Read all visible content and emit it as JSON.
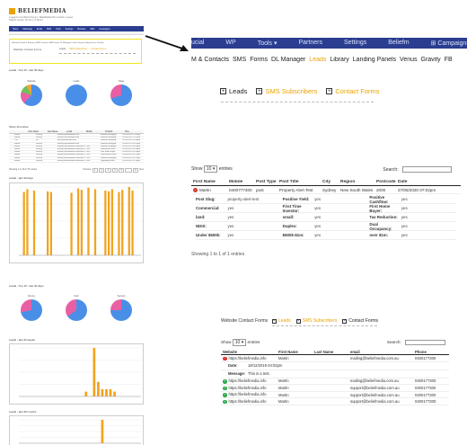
{
  "thumbnail": {
    "logo_text": "BELIEFMEDIA",
    "meta_lines": [
      "Logged in as Martin Khoury | BeliefMedia Pty Limited | Logout",
      "Search results: 32 Jul 1, 8 Sprint"
    ],
    "nav": [
      "Home",
      "Marketing",
      "Email",
      "SMS",
      "Tools",
      "Settings",
      "Modules",
      "SEO",
      "Campaigns"
    ],
    "sub_nav_text": "Website | Email & Sharing | SMS Contacts SMS Forms DL Manager Leads Library Landing Venus Gravity",
    "highlight": {
      "title": "Website Contact Forms",
      "tabs": [
        "Leads",
        "SMS Subscribers",
        "Contact Forms"
      ]
    },
    "section1_title": "Leads - Top 10 - last 30 days",
    "pies1": [
      {
        "label": "Website",
        "colors": [
          "#4a8fe7",
          "#e95fa3",
          "#6cc15d",
          "#f2a33a"
        ],
        "split": [
          62,
          18,
          12,
          8
        ]
      },
      {
        "label": "Leads",
        "colors": [
          "#4a8fe7"
        ],
        "split": [
          100
        ]
      },
      {
        "label": "Page",
        "colors": [
          "#4a8fe7",
          "#e95fa3"
        ],
        "split": [
          70,
          30
        ]
      }
    ],
    "table_title": "Show 10 entries",
    "table_headers": [
      "First Name",
      "Last Name",
      "email",
      "Mobile",
      "Product",
      "Time"
    ],
    "table_rows": [
      [
        "Martin",
        "Khoury",
        "martin@beliefmedia.com",
        "",
        "Remote mortgage",
        "2019/02/01 07:02pm"
      ],
      [
        "Martin",
        "Khoury",
        "martin@beliefmedia.com",
        "",
        "Remote mortgage",
        "2019/02/01 07:01pm"
      ],
      [
        "Tim",
        "Kit",
        "tim@beliefmedia.com",
        "",
        "Remote mortgage",
        "2019/02/01 06:58pm"
      ],
      [
        "Martin",
        "Khoury",
        "martin@beliefmedia.com",
        "",
        "Remote mortgage",
        "2019/02/01 06:51pm"
      ],
      [
        "Martin",
        "Khoury",
        "martin@beliefmedia.com",
        "0400177300",
        "Remote mortgage",
        "2019/02/01 06:44pm"
      ],
      [
        "Martin",
        "Khoury",
        "martin@beliefmedia.com",
        "0400177300",
        "Investment loans",
        "2019/02/01 06:40pm"
      ],
      [
        "Martin",
        "Khoury",
        "martin@beliefmedia.com",
        "0400177300",
        "First home buyer",
        "2019/02/01 06:39pm"
      ],
      [
        "Martin",
        "Khoury",
        "martin@beliefmedia.com",
        "0400177300",
        "Lead referral form",
        "2019/02/01 06:31pm"
      ],
      [
        "Martin",
        "Khoury",
        "martin@beliefmedia.com",
        "0400177300",
        "Remote mortgage",
        "2019/02/01 06:22pm"
      ],
      [
        "Martin",
        "Khoury",
        "martin@beliefmedia.com",
        "0400177300",
        "Upgrading loans",
        "2019/02/01 06:14pm"
      ]
    ],
    "pagination": {
      "info": "Showing 1 to 10 of 76 entries",
      "prev": "Previous",
      "pages": [
        "1",
        "2",
        "3",
        "4",
        "5",
        "…",
        "8"
      ],
      "next": "Next"
    },
    "chart1_title": "Leads - last 30 days",
    "chart1_values": [
      0,
      88,
      92,
      0,
      90,
      0,
      0,
      0,
      89,
      88,
      0,
      0,
      0,
      0,
      0,
      87,
      0,
      93,
      91,
      0,
      94,
      0,
      92,
      0,
      0,
      90,
      89,
      92,
      0,
      88,
      91,
      0,
      95,
      90,
      0,
      0
    ],
    "section2_title": "Leads - Top 10 - last 30 days",
    "pies2": [
      {
        "label": "Survey",
        "colors": [
          "#4a8fe7",
          "#e95fa3"
        ],
        "split": [
          72,
          28
        ]
      },
      {
        "label": "Calc",
        "colors": [
          "#4a8fe7",
          "#e95fa3"
        ],
        "split": [
          65,
          35
        ]
      },
      {
        "label": "Service",
        "colors": [
          "#4a8fe7",
          "#e95fa3"
        ],
        "split": [
          75,
          25
        ]
      }
    ],
    "chart2_title": "Leads - last 30 weeks",
    "chart2_values": [
      0,
      0,
      0,
      0,
      0,
      0,
      0,
      0,
      0,
      0,
      0,
      0,
      0,
      0,
      0,
      0,
      2,
      0,
      20,
      6,
      3,
      3,
      3,
      2,
      0,
      0,
      0,
      0,
      0,
      0
    ],
    "chart3_title": "Leads - last 30 months",
    "chart3_values": [
      0,
      0,
      0,
      0,
      0,
      0,
      0,
      0,
      0,
      0,
      0,
      0,
      0,
      0,
      0,
      0,
      0,
      0,
      0,
      0,
      22,
      0,
      0,
      0,
      0,
      0,
      0,
      0,
      0,
      0
    ],
    "colors": {
      "nav": "#2a3d8f",
      "accent": "#e8a400",
      "highlight": "#f2e41e",
      "bar": "#f2a41f"
    }
  },
  "zoom_nav": {
    "items": [
      "ucial",
      "WP",
      "Tools ▾",
      "Partners",
      "Settings",
      "Beliefm",
      "⊞ Campaigns"
    ]
  },
  "zoom_subnav": {
    "items": [
      "M & Contacts",
      "SMS",
      "Forms",
      "DL Manager",
      "Leads",
      "Library",
      "Landing Panels",
      "Venus",
      "Gravity",
      "FB"
    ],
    "active_index": 4
  },
  "zoom_tabs": {
    "items": [
      "Leads",
      "SMS Subscribers",
      "Contact Forms"
    ],
    "active_indexes": [
      1,
      2
    ]
  },
  "leads_table": {
    "show_label": "Show",
    "entries_value": "10 ▾",
    "entries_label": "entries",
    "search_label": "Search:",
    "headers": [
      "First Name",
      "Mobile",
      "Post Type",
      "Post Title",
      "City",
      "Region",
      "Postcode",
      "Date"
    ],
    "row": [
      "Martin",
      "0400777300",
      "post",
      "Property Alert Test",
      "Sydney",
      "New South Wales",
      "2000",
      "27/05/2020 07:02pm"
    ],
    "details": [
      [
        {
          "k": "Post Slug:",
          "v": "property-alert-test"
        },
        {
          "k": "Positive Yield:",
          "v": "yes"
        },
        {
          "k": "Positive Cashflow:",
          "v": "yes"
        }
      ],
      [
        {
          "k": "Commercial:",
          "v": "yes"
        },
        {
          "k": "First Time Investor:",
          "v": "yes"
        },
        {
          "k": "First Home Buyer:",
          "v": "yes"
        }
      ],
      [
        {
          "k": "land:",
          "v": "yes"
        },
        {
          "k": "small:",
          "v": "yes"
        },
        {
          "k": "Tax Reduction:",
          "v": "yes"
        }
      ],
      [
        {
          "k": "NDIS:",
          "v": "yes"
        },
        {
          "k": "Duplex:",
          "v": "yes"
        },
        {
          "k": "Dual Occupancy:",
          "v": "yes"
        }
      ],
      [
        {
          "k": "Under $600k:",
          "v": "yes"
        },
        {
          "k": "$600k-$1m:",
          "v": "yes"
        },
        {
          "k": "over $1m:",
          "v": "yes"
        }
      ]
    ],
    "footer": "Showing 1 to 1 of 1 entries"
  },
  "contact_forms": {
    "title": "Website Contact Forms",
    "tabs": [
      "Leads",
      "SMS Subscribers",
      "Contact Forms"
    ],
    "active_indexes": [
      0,
      1
    ],
    "show_label": "Show",
    "entries_value": "10 ▾",
    "entries_label": "entries",
    "search_label": "Search:",
    "headers": [
      "Website",
      "First Name",
      "Last Name",
      "email",
      "Phone"
    ],
    "first_row": [
      "https://beliefmedia.info",
      "Martin",
      "",
      "mailing@beliefmedia.com.au",
      "0400177300"
    ],
    "detail": [
      {
        "k": "Date:",
        "v": "18/12/2019 04:02pm"
      },
      {
        "k": "Message:",
        "v": "This is a test."
      }
    ],
    "rows": [
      [
        "https://beliefmedia.info",
        "Martin",
        "",
        "mailing@beliefmedia.com.au",
        "0400177300"
      ],
      [
        "https://beliefmedia.info",
        "Martin",
        "",
        "support@beliefmedia.com.au",
        "0400177300"
      ],
      [
        "https://beliefmedia.info",
        "Martin",
        "",
        "support@beliefmedia.com.au",
        "0400177300"
      ],
      [
        "https://beliefmedia.info",
        "Martin",
        "",
        "support@beliefmedia.com.au",
        "0400177300"
      ]
    ]
  }
}
